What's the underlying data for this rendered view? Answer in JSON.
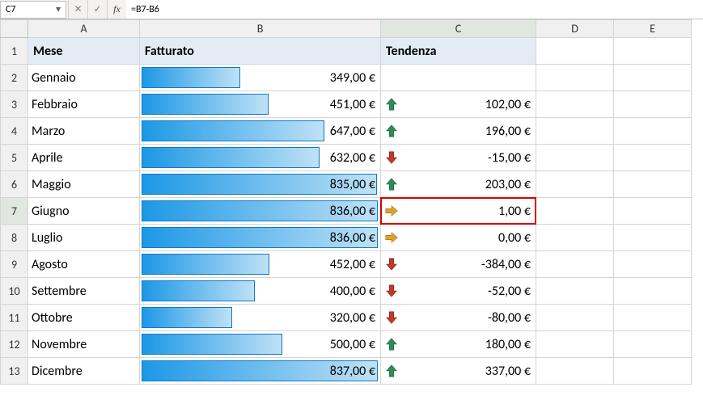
{
  "formula_bar": {
    "name_box": "C7",
    "formula": "=B7-B6",
    "cancel_glyph": "✕",
    "confirm_glyph": "✓",
    "fx_glyph": "fx",
    "dropdown_glyph": "▾"
  },
  "columns": [
    "A",
    "B",
    "C",
    "D",
    "E"
  ],
  "headers": {
    "mese": "Mese",
    "fatturato": "Fatturato",
    "tendenza": "Tendenza"
  },
  "selected": {
    "row": 7,
    "col": "C"
  },
  "max_value": 837,
  "colors": {
    "bar_start": "#1c98e6",
    "bar_end": "#bfe1f6",
    "header_row_bg": "#e3ecf5",
    "up_arrow": "#2e8b57",
    "down_arrow": "#c0392b",
    "side_arrow": "#e0a030",
    "selection_border": "#d80000"
  },
  "rows": [
    {
      "n": 1
    },
    {
      "n": 2,
      "mese": "Gennaio",
      "raw": 349,
      "fatturato": "349,00 €",
      "tendenza": null,
      "trend": null
    },
    {
      "n": 3,
      "mese": "Febbraio",
      "raw": 451,
      "fatturato": "451,00 €",
      "tendenza": "102,00 €",
      "trend": "up"
    },
    {
      "n": 4,
      "mese": "Marzo",
      "raw": 647,
      "fatturato": "647,00 €",
      "tendenza": "196,00 €",
      "trend": "up"
    },
    {
      "n": 5,
      "mese": "Aprile",
      "raw": 632,
      "fatturato": "632,00 €",
      "tendenza": "-15,00 €",
      "trend": "down"
    },
    {
      "n": 6,
      "mese": "Maggio",
      "raw": 835,
      "fatturato": "835,00 €",
      "tendenza": "203,00 €",
      "trend": "up"
    },
    {
      "n": 7,
      "mese": "Giugno",
      "raw": 836,
      "fatturato": "836,00 €",
      "tendenza": "1,00 €",
      "trend": "side"
    },
    {
      "n": 8,
      "mese": "Luglio",
      "raw": 836,
      "fatturato": "836,00 €",
      "tendenza": "0,00 €",
      "trend": "side"
    },
    {
      "n": 9,
      "mese": "Agosto",
      "raw": 452,
      "fatturato": "452,00 €",
      "tendenza": "-384,00 €",
      "trend": "down"
    },
    {
      "n": 10,
      "mese": "Settembre",
      "raw": 400,
      "fatturato": "400,00 €",
      "tendenza": "-52,00 €",
      "trend": "down"
    },
    {
      "n": 11,
      "mese": "Ottobre",
      "raw": 320,
      "fatturato": "320,00 €",
      "tendenza": "-80,00 €",
      "trend": "down"
    },
    {
      "n": 12,
      "mese": "Novembre",
      "raw": 500,
      "fatturato": "500,00 €",
      "tendenza": "180,00 €",
      "trend": "up"
    },
    {
      "n": 13,
      "mese": "Dicembre",
      "raw": 837,
      "fatturato": "837,00 €",
      "tendenza": "337,00 €",
      "trend": "up"
    }
  ]
}
